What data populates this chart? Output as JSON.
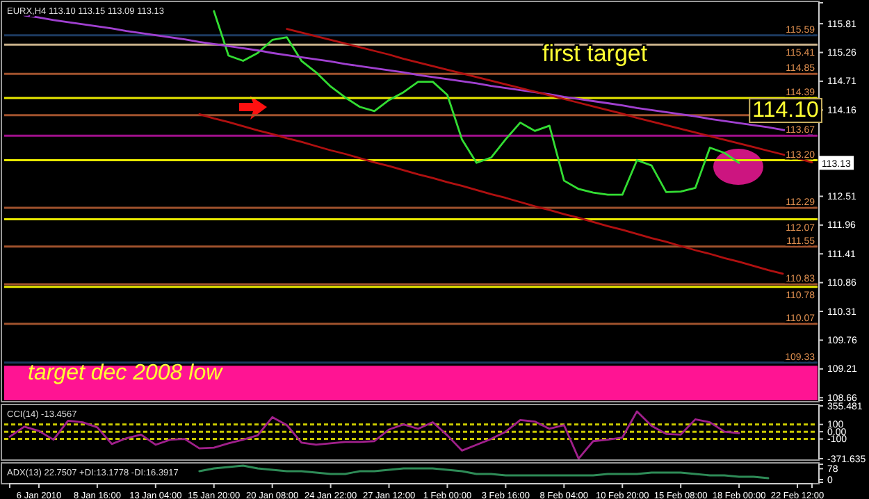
{
  "chart_data": [
    {
      "type": "line",
      "title": "EURX,H4 113.10 113.15 113.09 113.13",
      "categories": [
        null,
        null,
        null,
        null,
        null,
        null,
        null,
        null,
        null,
        null,
        null,
        null,
        null,
        null,
        null,
        null,
        null,
        null,
        null,
        null,
        null,
        null,
        null,
        null,
        null,
        null,
        null,
        null,
        null,
        null,
        null,
        null,
        null,
        null,
        null,
        null,
        null,
        null,
        null,
        null,
        null,
        null,
        null,
        null,
        null,
        null,
        null,
        null,
        null,
        null,
        null,
        null,
        null,
        null,
        null,
        null
      ],
      "ylim": [
        108.61,
        116.21
      ],
      "yticks": [
        115.81,
        115.26,
        114.71,
        114.16,
        112.51,
        111.96,
        111.41,
        110.86,
        110.31,
        109.76,
        109.21,
        108.66
      ],
      "tick_labels": "y",
      "series": [
        {
          "color": "#33dd33",
          "values": [
            null,
            null,
            null,
            null,
            null,
            null,
            null,
            null,
            null,
            null,
            null,
            null,
            null,
            null,
            116.05,
            115.2,
            115.1,
            115.25,
            115.5,
            115.55,
            115.1,
            114.88,
            114.61,
            114.4,
            114.22,
            114.14,
            114.35,
            114.5,
            114.7,
            114.7,
            114.45,
            113.6,
            113.15,
            113.25,
            113.6,
            113.92,
            113.76,
            113.86,
            112.81,
            112.65,
            112.58,
            112.54,
            112.54,
            113.2,
            113.1,
            112.59,
            112.6,
            112.67,
            113.44,
            113.34,
            113.15,
            null,
            null,
            null,
            null,
            null
          ]
        },
        {
          "type": "line",
          "color": "#a040d0",
          "values": [
            null,
            115.97,
            115.93,
            115.88,
            115.84,
            115.8,
            115.76,
            115.72,
            115.67,
            115.63,
            115.59,
            115.55,
            115.51,
            115.46,
            115.42,
            115.38,
            115.34,
            115.3,
            115.25,
            115.21,
            115.17,
            115.13,
            115.09,
            115.04,
            115.0,
            114.96,
            114.92,
            114.88,
            114.83,
            114.79,
            114.75,
            114.71,
            114.67,
            114.62,
            114.58,
            114.54,
            114.5,
            114.46,
            114.41,
            114.37,
            114.33,
            114.29,
            114.25,
            114.2,
            114.16,
            114.12,
            114.08,
            114.04,
            113.99,
            113.95,
            113.91,
            113.87,
            113.83,
            113.78,
            113.74,
            113.7
          ]
        },
        {
          "type": "line",
          "color": "#b01010",
          "values": [
            null,
            null,
            null,
            null,
            null,
            null,
            null,
            null,
            null,
            null,
            null,
            null,
            null,
            null,
            null,
            null,
            null,
            null,
            null,
            115.71,
            115.64,
            115.57,
            115.5,
            115.43,
            115.36,
            115.29,
            115.22,
            115.14,
            115.07,
            115.0,
            114.93,
            114.86,
            114.79,
            114.72,
            114.65,
            114.58,
            114.51,
            114.44,
            114.37,
            114.3,
            114.23,
            114.16,
            114.09,
            114.01,
            113.94,
            113.87,
            113.8,
            113.73,
            113.66,
            113.59,
            113.52,
            113.45,
            113.38,
            113.31,
            113.24,
            113.16
          ]
        },
        {
          "type": "line",
          "color": "#b01010",
          "values": [
            null,
            null,
            null,
            null,
            null,
            null,
            null,
            null,
            null,
            null,
            null,
            null,
            null,
            114.08,
            114.0,
            113.93,
            113.85,
            113.77,
            113.7,
            113.62,
            113.55,
            113.47,
            113.39,
            113.32,
            113.24,
            113.16,
            113.09,
            113.01,
            112.93,
            112.86,
            112.78,
            112.71,
            112.63,
            112.55,
            112.48,
            112.4,
            112.32,
            112.25,
            112.17,
            112.1,
            112.02,
            111.94,
            111.87,
            111.79,
            111.71,
            111.64,
            111.56,
            111.48,
            111.41,
            111.33,
            111.26,
            111.18,
            111.1,
            111.03,
            null,
            null
          ]
        }
      ],
      "ref_lines": [
        {
          "axis": "y",
          "value": 115.59,
          "label": "115.59",
          "color": "#1c3a60"
        },
        {
          "axis": "y",
          "value": 115.41,
          "label": "115.41",
          "color": "#c8b08a"
        },
        {
          "axis": "y",
          "value": 114.85,
          "label": "114.85",
          "color": "#a0522d"
        },
        {
          "axis": "y",
          "value": 114.39,
          "label": "114.39",
          "color": "#e8e800"
        },
        {
          "axis": "y",
          "value": 114.06,
          "color": "#a0522d"
        },
        {
          "axis": "y",
          "value": 113.67,
          "label": "113.67",
          "color": "#a0108b"
        },
        {
          "axis": "y",
          "value": 113.2,
          "label": "113.20",
          "color": "#e8e800"
        },
        {
          "axis": "y",
          "value": 112.29,
          "label": "112.29",
          "color": "#a0522d"
        },
        {
          "axis": "y",
          "value": 112.07,
          "label": "112.07",
          "color": "#e8e800"
        },
        {
          "axis": "y",
          "value": 111.55,
          "label": "111.55",
          "color": "#a0522d"
        },
        {
          "axis": "y",
          "value": 110.83,
          "label": "110.83",
          "color": "#a0522d"
        },
        {
          "axis": "y",
          "value": 110.78,
          "label": "110.78",
          "color": "#e8e800"
        },
        {
          "axis": "y",
          "value": 110.07,
          "label": "110.07",
          "color": "#a0522d"
        },
        {
          "axis": "y",
          "value": 109.33,
          "label": "109.33",
          "color": "#1c3a60"
        }
      ],
      "bands": [
        {
          "axis": "y",
          "from": 108.61,
          "to": 109.27,
          "label": "target dec 2008 low",
          "color": "#ff1493"
        }
      ],
      "annotations": [
        "first target",
        "114.10",
        "113.13"
      ]
    },
    {
      "type": "line",
      "title": "CCI(14) -13.4567",
      "categories": [
        null,
        null,
        null,
        null,
        null,
        null,
        null,
        null,
        null,
        null,
        null,
        null,
        null,
        null,
        null,
        null,
        null,
        null,
        null,
        null,
        null,
        null,
        null,
        null,
        null,
        null,
        null,
        null,
        null,
        null,
        null,
        null,
        null,
        null,
        null,
        null,
        null,
        null,
        null,
        null,
        null,
        null,
        null,
        null,
        null,
        null,
        null,
        null,
        null,
        null,
        null,
        null,
        null,
        null,
        null,
        null
      ],
      "ylim": [
        -371.635,
        355.481
      ],
      "yticks": [
        355.481,
        100,
        {
          "value": 0,
          "label": "0.00"
        },
        -100,
        -371.635
      ],
      "tick_labels": "y",
      "series": [
        {
          "color": "#a0208b",
          "values": [
            -70,
            70,
            10,
            -110,
            150,
            130,
            60,
            -170,
            -90,
            -40,
            -180,
            -110,
            -100,
            -230,
            -220,
            -160,
            -110,
            -50,
            200,
            90,
            -150,
            -180,
            -160,
            -140,
            -140,
            -130,
            30,
            100,
            40,
            130,
            -50,
            -260,
            -180,
            -100,
            0,
            160,
            140,
            40,
            90,
            -370,
            -130,
            -110,
            -80,
            280,
            80,
            -30,
            -40,
            170,
            130,
            0,
            -20,
            null,
            null,
            null,
            null,
            null
          ]
        }
      ],
      "ref_lines": [
        {
          "axis": "y",
          "value": 100,
          "color": "#c8c800",
          "line_style": "dashed"
        },
        {
          "axis": "y",
          "value": 0,
          "color": "#c8c800",
          "line_style": "dashed"
        },
        {
          "axis": "y",
          "value": -100,
          "color": "#c8c800",
          "line_style": "dashed"
        }
      ]
    },
    {
      "type": "line",
      "title": "ADX(13) 22.7507 +DI:13.1778 -DI:16.3917",
      "categories": [
        null,
        null,
        "6 Jan 2010",
        null,
        null,
        null,
        "8 Jan 16:00",
        null,
        null,
        null,
        "13 Jan 04:00",
        null,
        null,
        null,
        "15 Jan 20:00",
        null,
        null,
        null,
        "20 Jan 08:00",
        null,
        null,
        null,
        "24 Jan 22:00",
        null,
        null,
        null,
        "27 Jan 12:00",
        null,
        null,
        null,
        "1 Feb 00:00",
        null,
        null,
        null,
        "3 Feb 16:00",
        null,
        null,
        null,
        "8 Feb 04:00",
        null,
        null,
        null,
        "10 Feb 20:00",
        null,
        null,
        null,
        "15 Feb 08:00",
        null,
        null,
        null,
        "18 Feb 00:00",
        null,
        null,
        null,
        "22 Feb 12:00",
        null
      ],
      "ylim": [
        -20,
        110
      ],
      "yticks": [
        78,
        0
      ],
      "series": [
        {
          "color": "#2e8b57",
          "values": [
            null,
            null,
            null,
            null,
            null,
            null,
            null,
            null,
            null,
            null,
            null,
            null,
            null,
            60,
            80,
            90,
            100,
            80,
            70,
            60,
            60,
            50,
            40,
            40,
            60,
            60,
            70,
            80,
            80,
            80,
            70,
            60,
            40,
            40,
            30,
            30,
            30,
            30,
            30,
            30,
            30,
            40,
            40,
            40,
            50,
            50,
            50,
            40,
            30,
            30,
            20,
            20,
            10,
            null,
            null,
            null
          ]
        }
      ]
    }
  ]
}
